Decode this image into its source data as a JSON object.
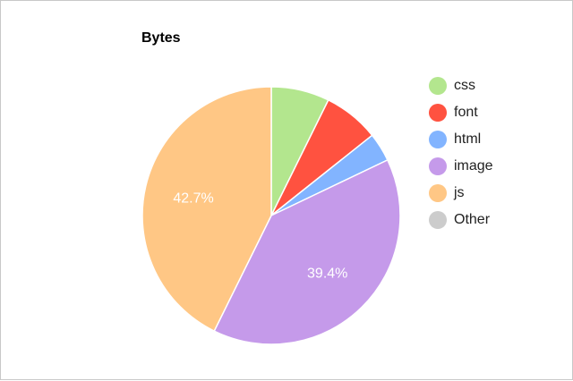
{
  "chart_data": {
    "type": "pie",
    "title": "Bytes",
    "legend_position": "right",
    "slices": [
      {
        "label": "css",
        "value": 7.3,
        "color": "#b3e68e",
        "data_label": ""
      },
      {
        "label": "font",
        "value": 7.0,
        "color": "#ff5240",
        "data_label": ""
      },
      {
        "label": "html",
        "value": 3.6,
        "color": "#82b4ff",
        "data_label": ""
      },
      {
        "label": "image",
        "value": 39.4,
        "color": "#c59aea",
        "data_label": "39.4%"
      },
      {
        "label": "js",
        "value": 42.7,
        "color": "#ffc785",
        "data_label": "42.7%"
      },
      {
        "label": "Other",
        "value": 0,
        "color": "#cccccc",
        "data_label": ""
      }
    ]
  }
}
